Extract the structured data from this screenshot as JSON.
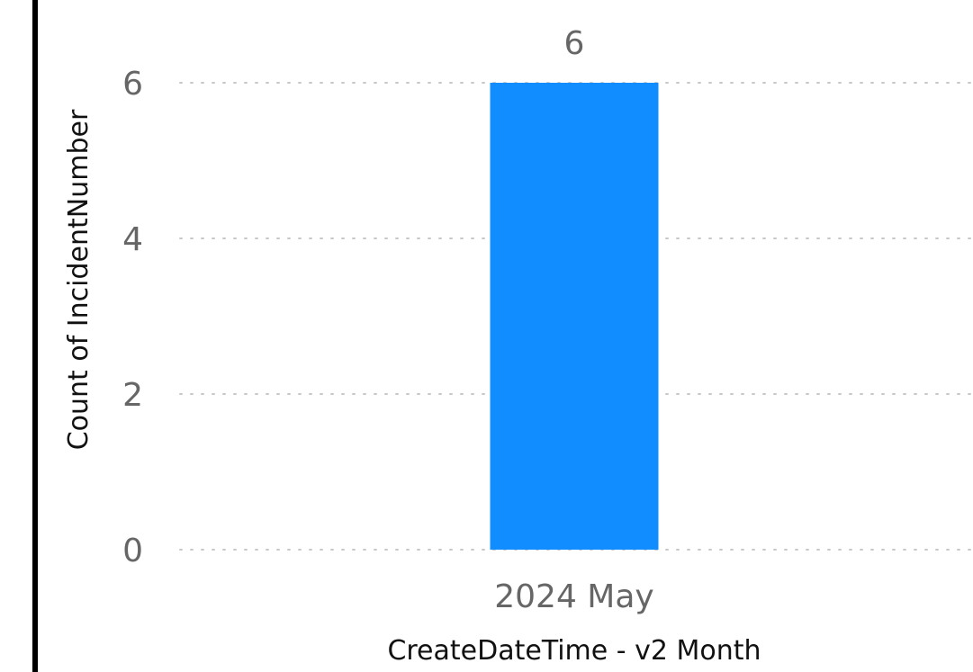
{
  "chart_data": {
    "type": "bar",
    "categories": [
      "2024 May"
    ],
    "values": [
      6
    ],
    "data_labels": [
      "6"
    ],
    "xlabel": "CreateDateTime - v2 Month",
    "ylabel": "Count of IncidentNumber",
    "ylim": [
      0,
      6
    ],
    "yticks": [
      "0",
      "2",
      "4",
      "6"
    ],
    "grid": true,
    "grid_style": "dotted",
    "bar_color": "#118DFF",
    "legend": "none"
  }
}
